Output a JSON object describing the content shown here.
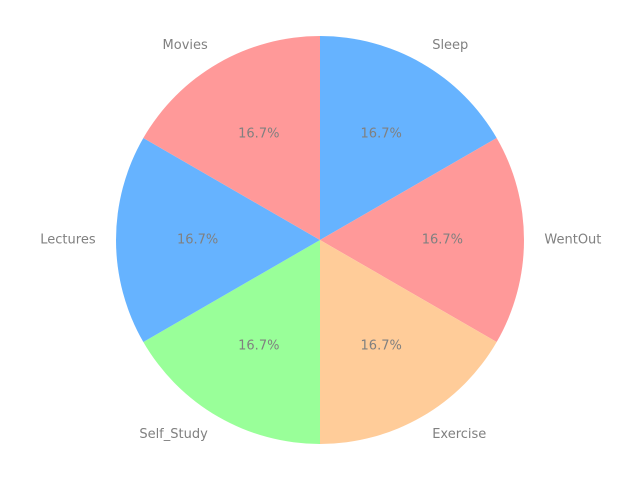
{
  "chart_data": {
    "type": "pie",
    "title": "",
    "categories": [
      "Sleep",
      "WentOut",
      "Exercise",
      "Self_Study",
      "Lectures",
      "Movies"
    ],
    "values": [
      16.7,
      16.7,
      16.7,
      16.7,
      16.7,
      16.7
    ],
    "percent_labels": [
      "16.7%",
      "16.7%",
      "16.7%",
      "16.7%",
      "16.7%",
      "16.7%"
    ],
    "colors": [
      "#66b3ff",
      "#ff9999",
      "#ffcc99",
      "#99ff99",
      "#66b3ff",
      "#ff9999"
    ],
    "start_angle_deg": 90,
    "direction": "clockwise",
    "legend": "none"
  }
}
